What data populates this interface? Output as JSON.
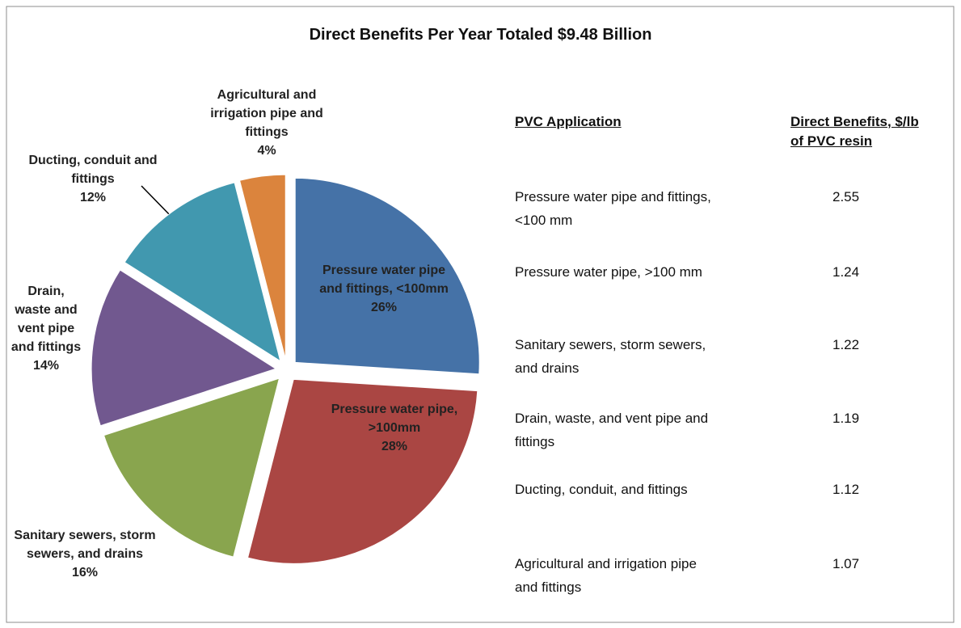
{
  "chart_data": {
    "type": "pie",
    "title": "Direct Benefits Per Year Totaled $9.48 Billion",
    "categories": [
      "Pressure water pipe and fittings, <100mm",
      "Pressure water pipe, >100mm",
      "Sanitary sewers, storm sewers, and drains",
      "Drain, waste and vent pipe and fittings",
      "Ducting, conduit and fittings",
      "Agricultural and irrigation pipe and fittings"
    ],
    "values": [
      26,
      28,
      16,
      14,
      12,
      4
    ],
    "value_labels": [
      "26%",
      "28%",
      "16%",
      "14%",
      "12%",
      "4%"
    ],
    "colors": [
      "#4572a7",
      "#aa4643",
      "#89a54e",
      "#71588f",
      "#4198af",
      "#db843d"
    ]
  },
  "table": {
    "headers": [
      "PVC Application",
      "Direct Benefits, $/lb of PVC resin"
    ],
    "rows": [
      [
        "Pressure water pipe and fittings, <100 mm",
        2.55
      ],
      [
        "Pressure water pipe, >100 mm",
        1.24
      ],
      [
        "Sanitary sewers, storm sewers, and drains",
        1.22
      ],
      [
        "Drain, waste, and vent pipe and fittings",
        1.19
      ],
      [
        "Ducting, conduit, and fittings",
        1.12
      ],
      [
        "Agricultural and irrigation pipe and fittings",
        1.07
      ]
    ]
  }
}
